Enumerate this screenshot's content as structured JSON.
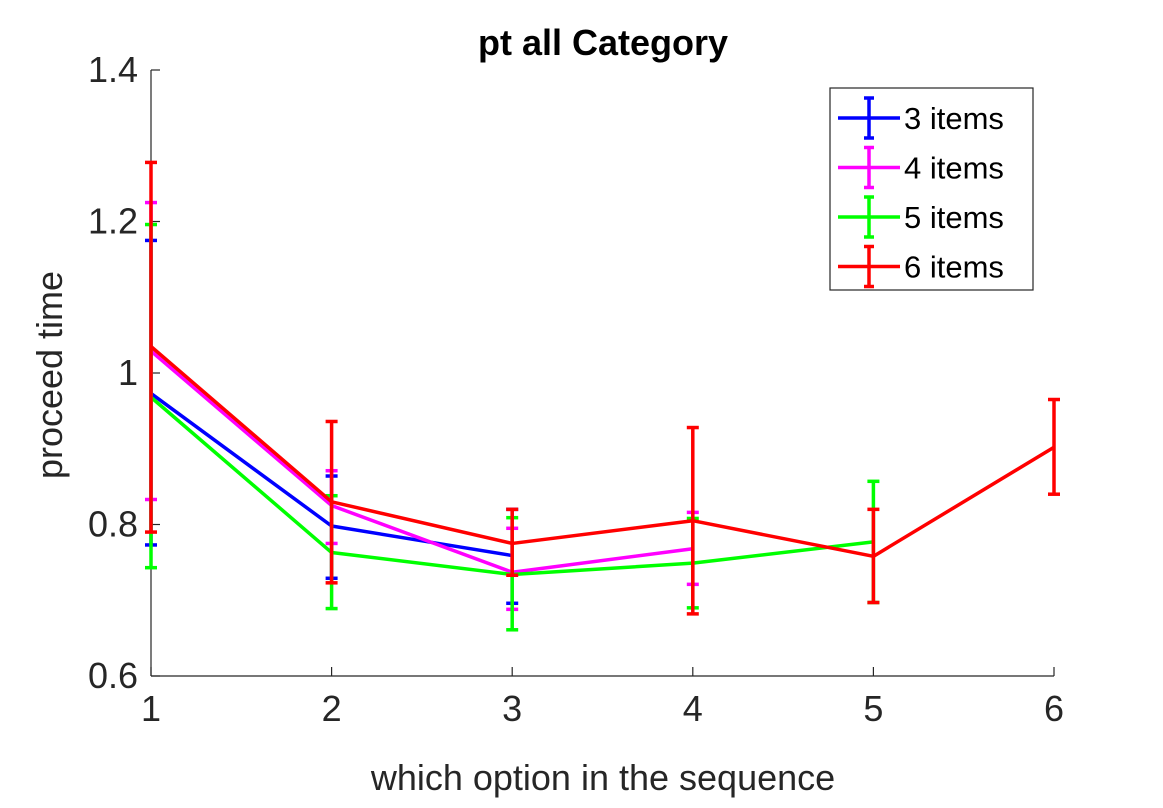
{
  "chart_data": {
    "type": "line",
    "title": "pt all Category",
    "xlabel": "which option in the sequence",
    "ylabel": "proceed time",
    "xlim": [
      1,
      6
    ],
    "ylim": [
      0.6,
      1.4
    ],
    "xticks": [
      1,
      2,
      3,
      4,
      5,
      6
    ],
    "yticks": [
      0.6,
      0.8,
      1,
      1.2,
      1.4
    ],
    "xtick_labels": [
      "1",
      "2",
      "3",
      "4",
      "5",
      "6"
    ],
    "ytick_labels": [
      "0.6",
      "0.8",
      "1",
      "1.2",
      "1.4"
    ],
    "grid": false,
    "legend_position": "top-right",
    "error_bars": true,
    "series": [
      {
        "name": "3 items",
        "color": "#0000ff",
        "x": [
          1,
          2,
          3
        ],
        "y": [
          0.973,
          0.798,
          0.759
        ],
        "err_low": [
          0.773,
          0.729,
          0.696
        ],
        "err_high": [
          1.175,
          0.864,
          0.82
        ]
      },
      {
        "name": "4 items",
        "color": "#ff00ff",
        "x": [
          1,
          2,
          3,
          4
        ],
        "y": [
          1.029,
          0.825,
          0.737,
          0.768
        ],
        "err_low": [
          0.833,
          0.775,
          0.688,
          0.721
        ],
        "err_high": [
          1.225,
          0.871,
          0.795,
          0.816
        ]
      },
      {
        "name": "5 items",
        "color": "#00ff00",
        "x": [
          1,
          2,
          3,
          4,
          5
        ],
        "y": [
          0.968,
          0.763,
          0.734,
          0.749,
          0.777
        ],
        "err_low": [
          0.743,
          0.689,
          0.661,
          0.69,
          0.697
        ],
        "err_high": [
          1.196,
          0.838,
          0.809,
          0.808,
          0.857
        ]
      },
      {
        "name": "6 items",
        "color": "#ff0000",
        "x": [
          1,
          2,
          3,
          4,
          5,
          6
        ],
        "y": [
          1.035,
          0.83,
          0.775,
          0.805,
          0.758,
          0.902
        ],
        "err_low": [
          0.79,
          0.723,
          0.733,
          0.682,
          0.697,
          0.84
        ],
        "err_high": [
          1.278,
          0.936,
          0.82,
          0.928,
          0.82,
          0.965
        ]
      }
    ]
  }
}
